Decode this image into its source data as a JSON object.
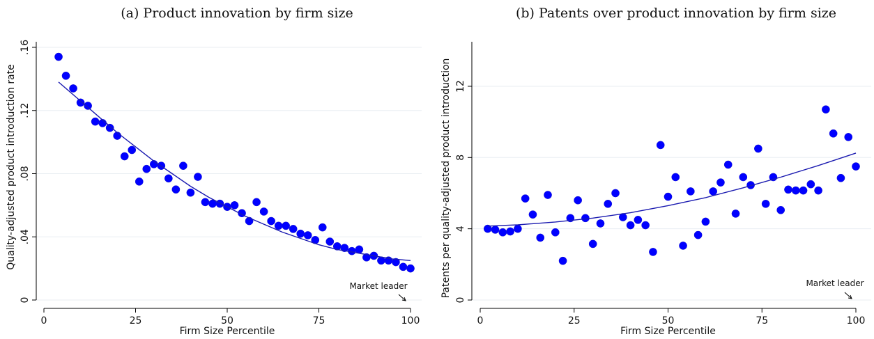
{
  "chart_data": [
    {
      "type": "scatter",
      "title": "(a) Product innovation by firm size",
      "xlabel": "Firm Size Percentile",
      "ylabel": "Quality-adjusted product introduction rate",
      "xlim": [
        0,
        100
      ],
      "ylim": [
        0,
        0.16
      ],
      "xticks": [
        0,
        25,
        50,
        75,
        100
      ],
      "xtick_labels": [
        "0",
        "25",
        "50",
        "75",
        "100"
      ],
      "yticks": [
        0,
        0.04,
        0.08,
        0.12,
        0.16
      ],
      "ytick_labels": [
        "0",
        ".04",
        ".08",
        ".12",
        ".16"
      ],
      "grid": true,
      "annotation": "Market leader",
      "points": {
        "x": [
          4,
          6,
          8,
          10,
          12,
          14,
          16,
          18,
          20,
          22,
          24,
          26,
          28,
          30,
          32,
          34,
          36,
          38,
          40,
          42,
          44,
          46,
          48,
          50,
          52,
          54,
          56,
          58,
          60,
          62,
          64,
          66,
          68,
          70,
          72,
          74,
          76,
          78,
          80,
          82,
          84,
          86,
          88,
          90,
          92,
          94,
          96,
          98,
          100
        ],
        "y": [
          0.154,
          0.142,
          0.134,
          0.125,
          0.123,
          0.113,
          0.112,
          0.109,
          0.104,
          0.091,
          0.095,
          0.075,
          0.083,
          0.086,
          0.085,
          0.077,
          0.07,
          0.085,
          0.068,
          0.078,
          0.062,
          0.061,
          0.061,
          0.059,
          0.06,
          0.055,
          0.05,
          0.062,
          0.056,
          0.05,
          0.047,
          0.047,
          0.045,
          0.042,
          0.041,
          0.038,
          0.046,
          0.037,
          0.034,
          0.033,
          0.031,
          0.032,
          0.027,
          0.028,
          0.025,
          0.025,
          0.024,
          0.021,
          0.02
        ]
      },
      "fit_line": {
        "x": [
          4,
          10,
          15,
          20,
          25,
          30,
          35,
          40,
          45,
          50,
          55,
          60,
          65,
          70,
          75,
          80,
          85,
          90,
          95,
          100
        ],
        "y": [
          0.138,
          0.126,
          0.116,
          0.106,
          0.097,
          0.088,
          0.08,
          0.072,
          0.065,
          0.059,
          0.053,
          0.048,
          0.043,
          0.039,
          0.035,
          0.032,
          0.03,
          0.028,
          0.026,
          0.025
        ]
      }
    },
    {
      "type": "scatter",
      "title": "(b) Patents over product innovation by firm size",
      "xlabel": "Firm Size Percentile",
      "ylabel": "Patents per quality-adjusted product introduction",
      "xlim": [
        0,
        100
      ],
      "ylim": [
        0,
        14.5
      ],
      "xticks": [
        0,
        25,
        50,
        75,
        100
      ],
      "xtick_labels": [
        "0",
        "25",
        "50",
        "75",
        "100"
      ],
      "yticks": [
        0,
        4,
        8,
        12
      ],
      "ytick_labels": [
        "0",
        "4",
        "8",
        "12"
      ],
      "grid": true,
      "annotation": "Market leader",
      "points": {
        "x": [
          2,
          4,
          6,
          8,
          10,
          12,
          14,
          16,
          18,
          20,
          22,
          24,
          26,
          28,
          30,
          32,
          34,
          36,
          38,
          40,
          42,
          44,
          46,
          48,
          50,
          52,
          54,
          56,
          58,
          60,
          62,
          64,
          66,
          68,
          70,
          72,
          74,
          76,
          78,
          80,
          82,
          84,
          86,
          88,
          90,
          92,
          94,
          96,
          98,
          100
        ],
        "y": [
          4.0,
          3.95,
          3.8,
          3.85,
          4.0,
          5.7,
          4.8,
          3.5,
          5.9,
          3.8,
          2.2,
          4.6,
          5.6,
          4.6,
          3.15,
          4.3,
          5.4,
          6.0,
          4.65,
          4.2,
          4.5,
          4.2,
          2.7,
          8.7,
          5.8,
          6.9,
          3.05,
          6.1,
          3.65,
          4.4,
          6.1,
          6.6,
          7.6,
          4.85,
          6.9,
          6.45,
          8.5,
          5.4,
          6.9,
          5.05,
          6.2,
          6.15,
          6.15,
          6.5,
          6.15,
          10.7,
          9.35,
          6.85,
          9.15,
          7.5
        ]
      },
      "fit_line": {
        "x": [
          2,
          10,
          20,
          30,
          40,
          50,
          60,
          70,
          80,
          90,
          100
        ],
        "y": [
          4.15,
          4.22,
          4.38,
          4.6,
          4.9,
          5.3,
          5.75,
          6.3,
          6.9,
          7.55,
          8.25
        ]
      }
    }
  ]
}
